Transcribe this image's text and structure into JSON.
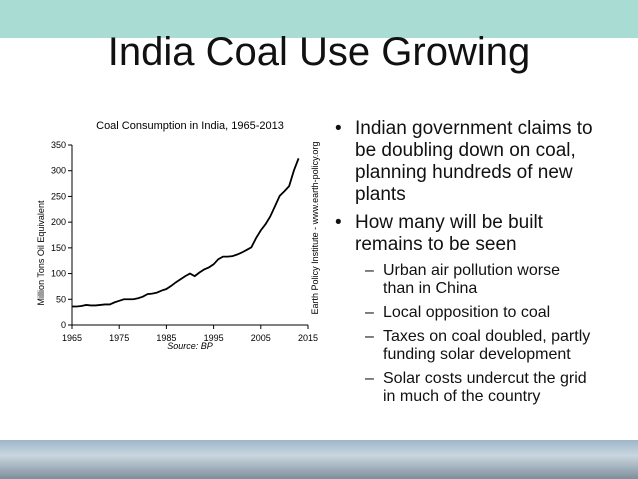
{
  "slide": {
    "title": "India Coal Use Growing",
    "bullets": [
      {
        "text": "Indian government claims to be doubling down on coal, planning hundreds of new plants",
        "sub": []
      },
      {
        "text": "How many will be built remains to be seen",
        "sub": [
          "Urban air pollution worse than in China",
          "Local opposition to coal",
          "Taxes on coal doubled, partly funding solar development",
          "Solar costs undercut the grid in much of the country"
        ]
      }
    ]
  },
  "chart_data": {
    "type": "line",
    "title": "Coal Consumption in India, 1965-2013",
    "y_label": "Million Tons Oil Equivalent",
    "source": "Source: BP",
    "credit": "Earth Policy Institute - www.earth-policy.org",
    "x": [
      1965,
      1966,
      1967,
      1968,
      1969,
      1970,
      1971,
      1972,
      1973,
      1974,
      1975,
      1976,
      1977,
      1978,
      1979,
      1980,
      1981,
      1982,
      1983,
      1984,
      1985,
      1986,
      1987,
      1988,
      1989,
      1990,
      1991,
      1992,
      1993,
      1994,
      1995,
      1996,
      1997,
      1998,
      1999,
      2000,
      2001,
      2002,
      2003,
      2004,
      2005,
      2006,
      2007,
      2008,
      2009,
      2010,
      2011,
      2012,
      2013
    ],
    "values": [
      36,
      36,
      37,
      39,
      38,
      38,
      39,
      40,
      40,
      44,
      47,
      50,
      50,
      50,
      52,
      55,
      60,
      61,
      63,
      67,
      70,
      76,
      83,
      89,
      95,
      100,
      95,
      102,
      108,
      112,
      118,
      128,
      133,
      133,
      134,
      137,
      141,
      146,
      151,
      169,
      184,
      196,
      211,
      231,
      251,
      260,
      270,
      300,
      324
    ],
    "color": "#000000",
    "xlim": [
      1965,
      2015
    ],
    "xticks": [
      1965,
      1975,
      1985,
      1995,
      2005,
      2015
    ],
    "ylim": [
      0,
      350
    ],
    "yticks": [
      0,
      50,
      100,
      150,
      200,
      250,
      300,
      350
    ]
  }
}
